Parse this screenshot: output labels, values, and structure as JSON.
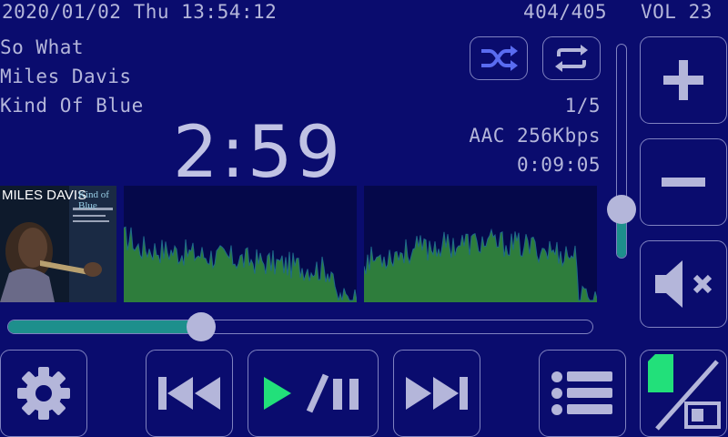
{
  "status_bar": {
    "datetime": "2020/01/02 Thu 13:54:12",
    "track_counter": "404/405",
    "volume_label": "VOL 23"
  },
  "track": {
    "title": "So What",
    "artist": "Miles Davis",
    "album": "Kind Of Blue",
    "elapsed": "2:59",
    "duration": "0:09:05",
    "position_fraction": 0.33
  },
  "playlist": {
    "index": "1/5"
  },
  "format": {
    "codec_bitrate": "AAC 256Kbps"
  },
  "album_art": {
    "artist_text": "MILES DAVIS",
    "album_text": "Kind of Blue"
  },
  "volume": {
    "level": 23,
    "slider_fraction": 0.23
  },
  "controls": {
    "shuffle": "shuffle-icon",
    "repeat": "repeat-icon",
    "volume_up": "plus-icon",
    "volume_down": "minus-icon",
    "mute": "mute-icon",
    "settings": "gear-icon",
    "previous": "skip-previous-icon",
    "play_pause": "play-pause-icon",
    "next": "skip-next-icon",
    "playlist": "playlist-icon",
    "storage": "sd-card-usb-icon"
  },
  "colors": {
    "background": "#0a0c6e",
    "foreground": "#b4b6da",
    "accent_teal": "#1d8f8c",
    "spectrum_green": "#2e7d3c",
    "play_green": "#22e07a",
    "shuffle_active": "#5a6cf0"
  }
}
